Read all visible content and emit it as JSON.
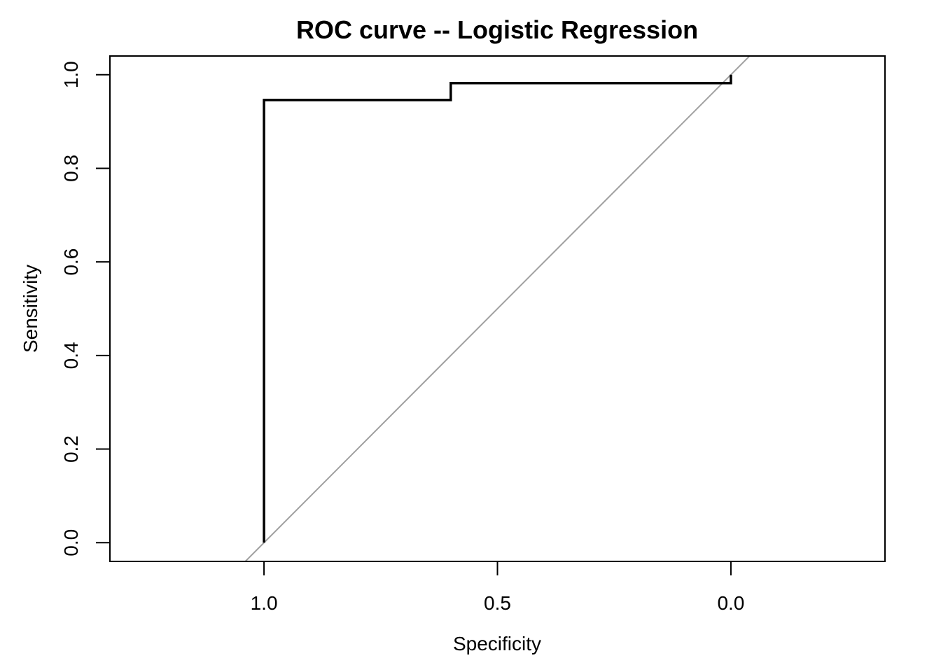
{
  "chart_data": {
    "type": "line",
    "title": "ROC curve -- Logistic Regression",
    "xlabel": "Specificity",
    "ylabel": "Sensitivity",
    "x_reversed": true,
    "xlim": [
      1.33,
      -0.33
    ],
    "ylim": [
      -0.04,
      1.04
    ],
    "xticks": [
      {
        "value": 1.0,
        "label": "1.0"
      },
      {
        "value": 0.5,
        "label": "0.5"
      },
      {
        "value": 0.0,
        "label": "0.0"
      }
    ],
    "yticks": [
      {
        "value": 0.0,
        "label": "0.0"
      },
      {
        "value": 0.2,
        "label": "0.2"
      },
      {
        "value": 0.4,
        "label": "0.4"
      },
      {
        "value": 0.6,
        "label": "0.6"
      },
      {
        "value": 0.8,
        "label": "0.8"
      },
      {
        "value": 1.0,
        "label": "1.0"
      }
    ],
    "grid": false,
    "series": [
      {
        "color": "#000000",
        "step": true,
        "points": [
          {
            "x": 1.0,
            "y": 0.0
          },
          {
            "x": 1.0,
            "y": 0.946
          },
          {
            "x": 0.6,
            "y": 0.946
          },
          {
            "x": 0.6,
            "y": 0.982
          },
          {
            "x": 0.0,
            "y": 0.982
          },
          {
            "x": 0.0,
            "y": 1.0
          }
        ]
      }
    ],
    "reference_line": {
      "color": "#a0a0a0",
      "from": {
        "x": 1.0,
        "y": 0.0
      },
      "to": {
        "x": 0.0,
        "y": 1.0
      }
    }
  }
}
